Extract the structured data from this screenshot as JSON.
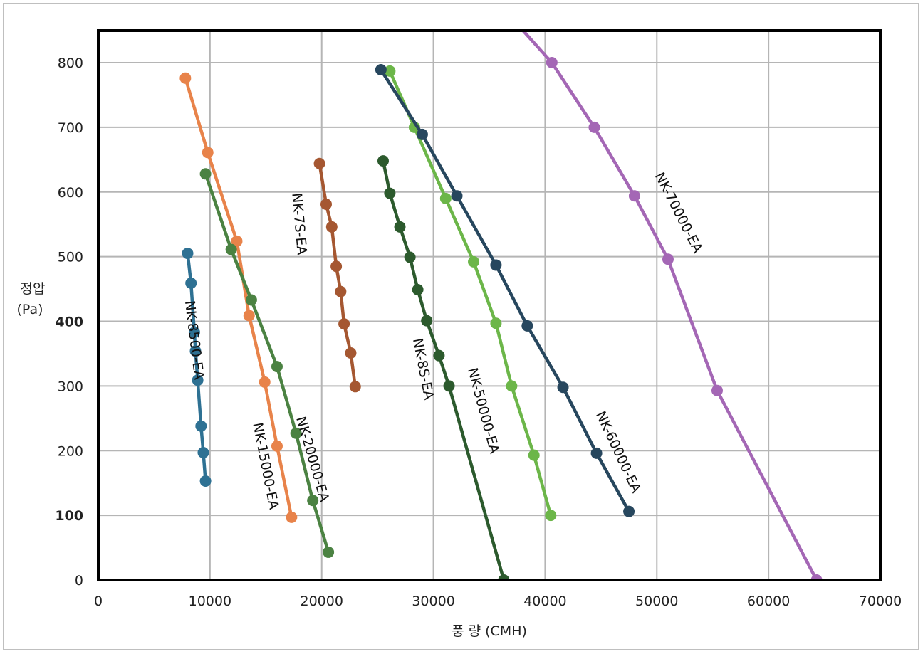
{
  "chart_data": {
    "type": "line",
    "xlabel": "풍 량 (CMH)",
    "ylabel": [
      "정압",
      "(Pa)"
    ],
    "xlim": [
      0,
      70000
    ],
    "ylim": [
      0,
      800
    ],
    "x_ticks": [
      "0",
      "10000",
      "20000",
      "30000",
      "40000",
      "50000",
      "60000",
      "70000"
    ],
    "y_ticks": [
      "0",
      "100",
      "200",
      "300",
      "400",
      "500",
      "600",
      "700",
      "800"
    ],
    "grid": true,
    "series": [
      {
        "name": "NK-8500-EA",
        "color": "#2e7193",
        "x": [
          8000,
          8300,
          8600,
          8700,
          8900,
          9200,
          9400,
          9600
        ],
        "y": [
          505,
          459,
          383,
          354,
          309,
          238,
          197,
          153
        ]
      },
      {
        "name": "NK-15000-EA",
        "color": "#e8834a",
        "x": [
          7800,
          9800,
          12400,
          13500,
          14900,
          16000,
          17300
        ],
        "y": [
          776,
          661,
          524,
          409,
          306,
          207,
          97
        ]
      },
      {
        "name": "NK-20000-EA",
        "color": "#4b8242",
        "x": [
          9600,
          11900,
          13700,
          16000,
          17700,
          19200,
          20600
        ],
        "y": [
          628,
          511,
          433,
          330,
          227,
          123,
          43
        ]
      },
      {
        "name": "NK-7S-EA",
        "color": "#a55731",
        "x": [
          19800,
          20400,
          20900,
          21300,
          21700,
          22000,
          22600,
          23000
        ],
        "y": [
          644,
          581,
          546,
          485,
          446,
          396,
          351,
          299
        ]
      },
      {
        "name": "NK-8S-EA",
        "color": "#2c5a2d",
        "x": [
          25500,
          26100,
          27000,
          27900,
          28600,
          29400,
          30500,
          31400,
          36300
        ],
        "y": [
          648,
          598,
          546,
          499,
          449,
          401,
          347,
          300,
          0
        ]
      },
      {
        "name": "NK-50000-EA",
        "color": "#6cb649",
        "x": [
          26100,
          28300,
          31100,
          33600,
          35600,
          37000,
          39000,
          40500
        ],
        "y": [
          787,
          700,
          590,
          492,
          397,
          300,
          193,
          100
        ]
      },
      {
        "name": "NK-60000-EA",
        "color": "#27475e",
        "x": [
          25300,
          29000,
          32100,
          35600,
          38400,
          41600,
          44600,
          47500
        ],
        "y": [
          789,
          689,
          594,
          487,
          393,
          298,
          196,
          106
        ]
      },
      {
        "name": "NK-70000-EA",
        "color": "#a467b5",
        "x": [
          38000,
          40600,
          44400,
          48000,
          51000,
          55400,
          64300
        ],
        "y": [
          850,
          800,
          700,
          594,
          496,
          293,
          0
        ],
        "markers": [
          false,
          true,
          true,
          true,
          true,
          true,
          true
        ]
      }
    ]
  }
}
